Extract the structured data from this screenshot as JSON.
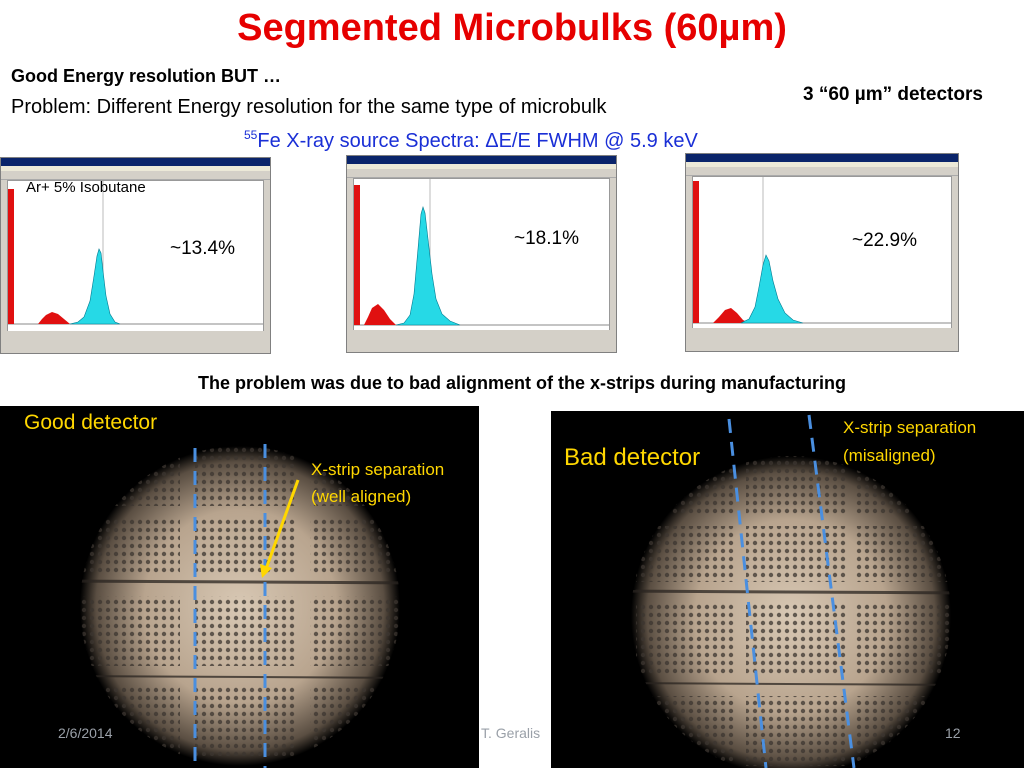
{
  "slide": {
    "title": "Segmented Microbulks (60µm)",
    "line1": "Good Energy resolution BUT …",
    "line2": "Problem: Different Energy resolution for the same type of microbulk",
    "detectors_label": "3 “60 µm” detectors",
    "spectra_caption": {
      "superscript": "55",
      "text": "Fe X-ray  source  Spectra: ΔE/E  FWHM @ 5.9 keV"
    },
    "gas_label": "Ar+ 5% Isobutane",
    "spectra": [
      {
        "resolution_label": "~13.4%",
        "peak_color": "#26d9e6",
        "escape_color": "#e01010"
      },
      {
        "resolution_label": "~18.1%",
        "peak_color": "#26d9e6",
        "escape_color": "#e01010"
      },
      {
        "resolution_label": "~22.9%",
        "peak_color": "#26d9e6",
        "escape_color": "#e01010"
      }
    ],
    "problem_caption": "The problem was due to bad alignment of the x-strips during manufacturing",
    "good_detector": {
      "label": "Good detector",
      "annotation_line1": "X-strip separation",
      "annotation_line2": "(well aligned)"
    },
    "bad_detector": {
      "label": "Bad detector",
      "annotation_line1": "X-strip separation",
      "annotation_line2": "(misaligned)"
    },
    "footer": {
      "date": "2/6/2014",
      "author": "T. Geralis",
      "page": "12"
    },
    "colors": {
      "title": "#e60000",
      "caption_blue": "#1a2fd6",
      "annotation_yellow": "#ffd700",
      "strip_line_blue": "#4a8fe0"
    }
  }
}
